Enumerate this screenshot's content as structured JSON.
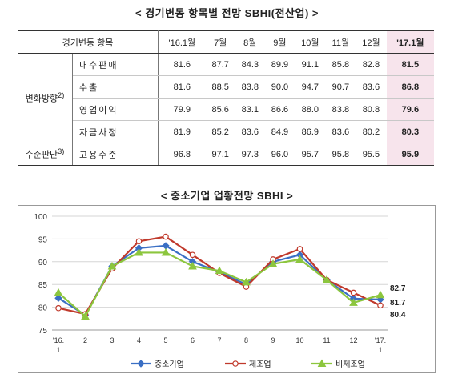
{
  "table_title": "< 경기변동 항목별 전망 SBHI(전산업) >",
  "chart_title": "< 중소기업 업황전망 SBHI >",
  "table": {
    "corner": "경기변동 항목",
    "columns": [
      "'16.1월",
      "7월",
      "8월",
      "9월",
      "10월",
      "11월",
      "12월",
      "'17.1월"
    ],
    "groups": [
      {
        "label": "변화방향",
        "sup": "2)",
        "rows": [
          {
            "item": "내수판매",
            "values": [
              "81.6",
              "87.7",
              "84.3",
              "89.9",
              "91.1",
              "85.8",
              "82.8",
              "81.5"
            ]
          },
          {
            "item": "수출",
            "values": [
              "81.6",
              "88.5",
              "83.8",
              "90.0",
              "94.7",
              "90.7",
              "83.6",
              "86.8"
            ]
          },
          {
            "item": "영업이익",
            "values": [
              "79.9",
              "85.6",
              "83.1",
              "86.6",
              "88.0",
              "83.8",
              "80.8",
              "79.6"
            ]
          },
          {
            "item": "자금사정",
            "values": [
              "81.9",
              "85.2",
              "83.6",
              "84.9",
              "86.9",
              "83.6",
              "80.2",
              "80.3"
            ]
          }
        ]
      },
      {
        "label": "수준판단",
        "sup": "3)",
        "rows": [
          {
            "item": "고용수준",
            "values": [
              "96.8",
              "97.1",
              "97.3",
              "96.0",
              "95.7",
              "95.8",
              "95.5",
              "95.9"
            ]
          }
        ]
      }
    ]
  },
  "chart_data": {
    "type": "line",
    "categories": [
      {
        "top": "'16.",
        "bottom": "1"
      },
      {
        "top": "2",
        "bottom": ""
      },
      {
        "top": "3",
        "bottom": ""
      },
      {
        "top": "4",
        "bottom": ""
      },
      {
        "top": "5",
        "bottom": ""
      },
      {
        "top": "6",
        "bottom": ""
      },
      {
        "top": "7",
        "bottom": ""
      },
      {
        "top": "8",
        "bottom": ""
      },
      {
        "top": "9",
        "bottom": ""
      },
      {
        "top": "10",
        "bottom": ""
      },
      {
        "top": "11",
        "bottom": ""
      },
      {
        "top": "12",
        "bottom": ""
      },
      {
        "top": "'17.",
        "bottom": "1"
      }
    ],
    "ylim": [
      75,
      100
    ],
    "yticks": [
      "75",
      "80",
      "85",
      "90",
      "95",
      "100"
    ],
    "grid": true,
    "legend_position": "bottom",
    "series": [
      {
        "name": "중소기업",
        "color": "#3a6fc4",
        "marker": "diamond",
        "values": [
          82.0,
          78.3,
          89.0,
          93.0,
          93.5,
          90.0,
          87.7,
          85.0,
          90.0,
          91.5,
          86.0,
          81.9,
          81.7
        ]
      },
      {
        "name": "제조업",
        "color": "#c0392b",
        "marker": "circle",
        "values": [
          79.8,
          78.5,
          88.5,
          94.5,
          95.5,
          91.5,
          87.5,
          84.5,
          90.5,
          92.8,
          86.0,
          83.2,
          80.4
        ]
      },
      {
        "name": "비제조업",
        "color": "#8cc63e",
        "marker": "triangle",
        "values": [
          83.2,
          78.0,
          89.0,
          92.0,
          92.0,
          89.0,
          88.0,
          85.5,
          89.5,
          90.5,
          86.0,
          81.0,
          82.7
        ]
      }
    ],
    "end_labels": [
      "82.7",
      "81.7",
      "80.4"
    ]
  }
}
